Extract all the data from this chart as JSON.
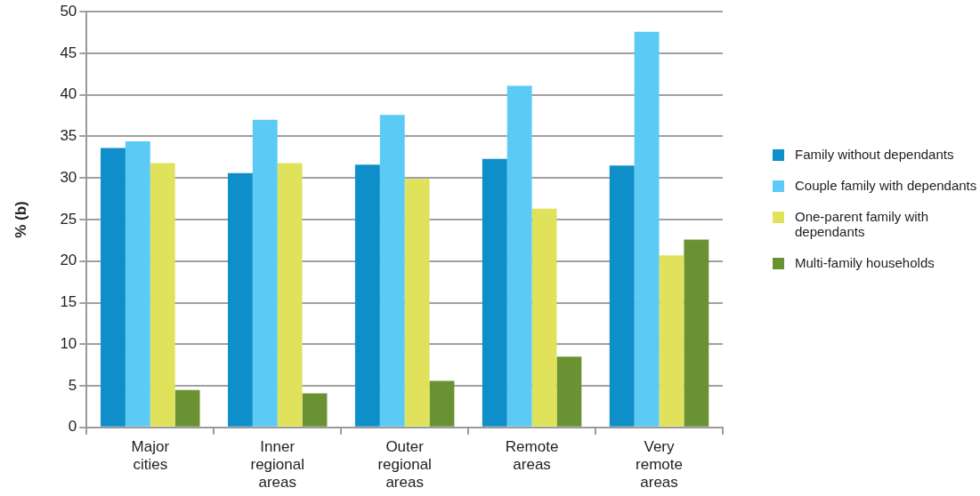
{
  "chart_data": {
    "type": "bar",
    "ylabel": "% (b)",
    "categories": [
      "Major cities",
      "Inner regional areas",
      "Outer regional areas",
      "Remote areas",
      "Very remote areas"
    ],
    "series": [
      {
        "name": "Family without dependants",
        "color": "#0e8fca",
        "values": [
          33.6,
          30.6,
          31.6,
          32.3,
          31.5
        ]
      },
      {
        "name": "Couple family with dependants",
        "color": "#5bcbf5",
        "values": [
          34.4,
          37.0,
          37.6,
          41.1,
          47.6
        ]
      },
      {
        "name": "One-parent family with dependants",
        "color": "#e0e25b",
        "values": [
          31.8,
          31.8,
          29.9,
          26.3,
          20.7
        ]
      },
      {
        "name": "Multi-family households",
        "color": "#6a9232",
        "values": [
          4.5,
          4.1,
          5.6,
          8.5,
          22.6
        ]
      }
    ],
    "ylim": [
      0,
      50
    ],
    "yticks": [
      0,
      5,
      10,
      15,
      20,
      25,
      30,
      35,
      40,
      45,
      50
    ],
    "grid": "y",
    "legend": "right"
  }
}
